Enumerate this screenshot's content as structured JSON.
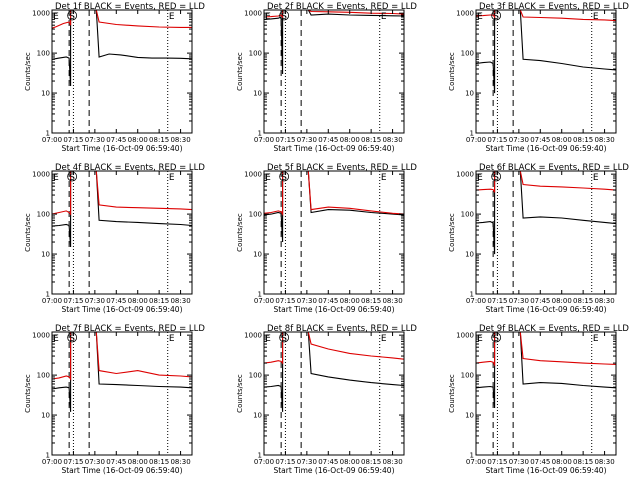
{
  "figure": {
    "x_ticks": [
      "07:00",
      "07:15",
      "07:30",
      "07:45",
      "08:00",
      "08:15",
      "08:30"
    ],
    "y_ticks": [
      "1",
      "10",
      "100",
      "1000"
    ],
    "xlabel": "Start Time (16-Oct-09 06:59:40)",
    "ylabel": "Counts/sec",
    "markers": [
      "E",
      "S",
      "E"
    ],
    "colors": {
      "events": "#000000",
      "lld": "#dd0000",
      "frame": "#000000"
    }
  },
  "chart_data": [
    {
      "type": "line",
      "title": "Det 1f BLACK = Events, RED = LLD",
      "xlim": [
        "07:00",
        "08:38"
      ],
      "ylog": true,
      "ylim": [
        1,
        1200
      ],
      "series": [
        {
          "name": "BLACK = Events",
          "color": "#000000",
          "x": [
            "07:00",
            "07:05",
            "07:10",
            "07:12",
            "07:13",
            "07:13",
            "07:20",
            "07:25",
            "07:31",
            "07:33",
            "07:40",
            "07:48",
            "08:00",
            "08:10",
            "08:20",
            "08:30",
            "08:38"
          ],
          "y": [
            70,
            75,
            80,
            75,
            15,
            1200,
            1200,
            1200,
            1200,
            80,
            95,
            90,
            78,
            75,
            75,
            74,
            72
          ]
        },
        {
          "name": "RED = LLD",
          "color": "#dd0000",
          "x": [
            "07:00",
            "07:03",
            "07:08",
            "07:12",
            "07:13",
            "07:13",
            "07:20",
            "07:25",
            "07:31",
            "07:33",
            "07:45",
            "08:00",
            "08:15",
            "08:30",
            "08:38"
          ],
          "y": [
            420,
            460,
            550,
            600,
            500,
            1200,
            1200,
            1200,
            1200,
            600,
            520,
            480,
            450,
            440,
            440
          ]
        }
      ],
      "dashed_lines": [
        "07:12",
        "07:26"
      ],
      "dotted_lines": [
        "07:15",
        "08:21"
      ]
    },
    {
      "type": "line",
      "title": "Det 2f BLACK = Events, RED = LLD",
      "xlim": [
        "07:00",
        "08:38"
      ],
      "ylog": true,
      "ylim": [
        1,
        1200
      ],
      "series": [
        {
          "name": "BLACK = Events",
          "color": "#000000",
          "x": [
            "07:00",
            "07:05",
            "07:10",
            "07:12",
            "07:13",
            "07:13",
            "07:20",
            "07:25",
            "07:31",
            "07:33",
            "07:45",
            "08:00",
            "08:15",
            "08:30",
            "08:38"
          ],
          "y": [
            700,
            720,
            750,
            800,
            30,
            1200,
            1200,
            1200,
            1200,
            900,
            950,
            900,
            880,
            860,
            850
          ]
        },
        {
          "name": "RED = LLD",
          "color": "#dd0000",
          "x": [
            "07:00",
            "07:05",
            "07:10",
            "07:12",
            "07:13",
            "07:13",
            "07:20",
            "07:25",
            "07:31",
            "07:33",
            "07:45",
            "08:00",
            "08:15",
            "08:30",
            "08:38"
          ],
          "y": [
            800,
            820,
            850,
            900,
            800,
            1200,
            1200,
            1200,
            1200,
            1100,
            1080,
            1050,
            1000,
            980,
            950
          ]
        }
      ],
      "dashed_lines": [
        "07:12",
        "07:26"
      ],
      "dotted_lines": [
        "07:15",
        "08:21"
      ]
    },
    {
      "type": "line",
      "title": "Det 3f BLACK = Events, RED = LLD",
      "xlim": [
        "07:00",
        "08:38"
      ],
      "ylog": true,
      "ylim": [
        1,
        1200
      ],
      "series": [
        {
          "name": "BLACK = Events",
          "color": "#000000",
          "x": [
            "07:00",
            "07:05",
            "07:10",
            "07:12",
            "07:13",
            "07:13",
            "07:20",
            "07:25",
            "07:31",
            "07:33",
            "07:45",
            "08:00",
            "08:15",
            "08:30",
            "08:38"
          ],
          "y": [
            55,
            58,
            60,
            55,
            10,
            1200,
            1200,
            1200,
            1200,
            70,
            65,
            55,
            45,
            40,
            38
          ]
        },
        {
          "name": "RED = LLD",
          "color": "#dd0000",
          "x": [
            "07:00",
            "07:05",
            "07:10",
            "07:12",
            "07:13",
            "07:13",
            "07:20",
            "07:25",
            "07:31",
            "07:33",
            "07:45",
            "08:00",
            "08:15",
            "08:30",
            "08:38"
          ],
          "y": [
            850,
            870,
            900,
            900,
            800,
            1200,
            1200,
            1200,
            1200,
            800,
            780,
            750,
            700,
            680,
            650
          ]
        }
      ],
      "dashed_lines": [
        "07:12",
        "07:26"
      ],
      "dotted_lines": [
        "07:15",
        "08:21"
      ]
    },
    {
      "type": "line",
      "title": "Det 4f BLACK = Events, RED = LLD",
      "xlim": [
        "07:00",
        "08:38"
      ],
      "ylog": true,
      "ylim": [
        1,
        1200
      ],
      "series": [
        {
          "name": "BLACK = Events",
          "color": "#000000",
          "x": [
            "07:00",
            "07:05",
            "07:10",
            "07:12",
            "07:13",
            "07:13",
            "07:20",
            "07:25",
            "07:31",
            "07:33",
            "07:45",
            "08:00",
            "08:15",
            "08:30",
            "08:38"
          ],
          "y": [
            50,
            52,
            55,
            52,
            15,
            1200,
            1200,
            1200,
            1200,
            70,
            65,
            62,
            58,
            55,
            52
          ]
        },
        {
          "name": "RED = LLD",
          "color": "#dd0000",
          "x": [
            "07:00",
            "07:05",
            "07:10",
            "07:12",
            "07:13",
            "07:13",
            "07:20",
            "07:25",
            "07:31",
            "07:33",
            "07:45",
            "08:00",
            "08:15",
            "08:30",
            "08:38"
          ],
          "y": [
            100,
            110,
            120,
            110,
            100,
            1200,
            1200,
            1200,
            1200,
            170,
            150,
            145,
            140,
            135,
            130
          ]
        }
      ],
      "dashed_lines": [
        "07:12",
        "07:26"
      ],
      "dotted_lines": [
        "07:15",
        "08:21"
      ]
    },
    {
      "type": "line",
      "title": "Det 5f BLACK = Events, RED = LLD",
      "xlim": [
        "07:00",
        "08:38"
      ],
      "ylog": true,
      "ylim": [
        1,
        1200
      ],
      "series": [
        {
          "name": "BLACK = Events",
          "color": "#000000",
          "x": [
            "07:00",
            "07:05",
            "07:10",
            "07:12",
            "07:13",
            "07:13",
            "07:20",
            "07:25",
            "07:31",
            "07:33",
            "07:45",
            "08:00",
            "08:15",
            "08:30",
            "08:38"
          ],
          "y": [
            95,
            100,
            110,
            105,
            20,
            1200,
            1200,
            1200,
            1200,
            110,
            130,
            125,
            110,
            100,
            95
          ]
        },
        {
          "name": "RED = LLD",
          "color": "#dd0000",
          "x": [
            "07:00",
            "07:05",
            "07:10",
            "07:12",
            "07:13",
            "07:13",
            "07:20",
            "07:25",
            "07:31",
            "07:33",
            "07:45",
            "08:00",
            "08:15",
            "08:30",
            "08:38"
          ],
          "y": [
            105,
            110,
            120,
            115,
            100,
            1200,
            1200,
            1200,
            1200,
            130,
            150,
            140,
            120,
            105,
            100
          ]
        }
      ],
      "dashed_lines": [
        "07:12",
        "07:26"
      ],
      "dotted_lines": [
        "07:15",
        "08:21"
      ]
    },
    {
      "type": "line",
      "title": "Det 6f BLACK = Events, RED = LLD",
      "xlim": [
        "07:00",
        "08:38"
      ],
      "ylog": true,
      "ylim": [
        1,
        1200
      ],
      "series": [
        {
          "name": "BLACK = Events",
          "color": "#000000",
          "x": [
            "07:00",
            "07:05",
            "07:10",
            "07:12",
            "07:13",
            "07:13",
            "07:20",
            "07:25",
            "07:31",
            "07:33",
            "07:45",
            "08:00",
            "08:15",
            "08:30",
            "08:38"
          ],
          "y": [
            60,
            62,
            65,
            60,
            10,
            1200,
            1200,
            1200,
            1200,
            80,
            85,
            80,
            70,
            62,
            58
          ]
        },
        {
          "name": "RED = LLD",
          "color": "#dd0000",
          "x": [
            "07:00",
            "07:05",
            "07:10",
            "07:12",
            "07:13",
            "07:13",
            "07:20",
            "07:25",
            "07:31",
            "07:33",
            "07:45",
            "08:00",
            "08:15",
            "08:30",
            "08:38"
          ],
          "y": [
            400,
            410,
            420,
            410,
            350,
            1200,
            1200,
            1200,
            1200,
            550,
            500,
            480,
            450,
            420,
            400
          ]
        }
      ],
      "dashed_lines": [
        "07:12",
        "07:26"
      ],
      "dotted_lines": [
        "07:15",
        "08:21"
      ]
    },
    {
      "type": "line",
      "title": "Det 7f BLACK = Events, RED = LLD",
      "xlim": [
        "07:00",
        "08:38"
      ],
      "ylog": true,
      "ylim": [
        1,
        1200
      ],
      "series": [
        {
          "name": "BLACK = Events",
          "color": "#000000",
          "x": [
            "07:00",
            "07:05",
            "07:10",
            "07:12",
            "07:13",
            "07:13",
            "07:20",
            "07:25",
            "07:31",
            "07:33",
            "07:45",
            "08:00",
            "08:15",
            "08:30",
            "08:38"
          ],
          "y": [
            45,
            48,
            50,
            48,
            12,
            1200,
            1200,
            1200,
            1200,
            60,
            58,
            55,
            52,
            50,
            48
          ]
        },
        {
          "name": "RED = LLD",
          "color": "#dd0000",
          "x": [
            "07:00",
            "07:05",
            "07:10",
            "07:12",
            "07:13",
            "07:13",
            "07:20",
            "07:25",
            "07:31",
            "07:33",
            "07:45",
            "08:00",
            "08:15",
            "08:30",
            "08:38"
          ],
          "y": [
            80,
            85,
            95,
            90,
            80,
            1200,
            1200,
            1200,
            1200,
            130,
            110,
            130,
            100,
            95,
            90
          ]
        }
      ],
      "dashed_lines": [
        "07:12",
        "07:26"
      ],
      "dotted_lines": [
        "07:15",
        "08:21"
      ]
    },
    {
      "type": "line",
      "title": "Det 8f BLACK = Events, RED = LLD",
      "xlim": [
        "07:00",
        "08:38"
      ],
      "ylog": true,
      "ylim": [
        1,
        1200
      ],
      "series": [
        {
          "name": "BLACK = Events",
          "color": "#000000",
          "x": [
            "07:00",
            "07:05",
            "07:10",
            "07:12",
            "07:13",
            "07:13",
            "07:20",
            "07:25",
            "07:31",
            "07:33",
            "07:45",
            "08:00",
            "08:15",
            "08:30",
            "08:38"
          ],
          "y": [
            50,
            52,
            55,
            52,
            12,
            1200,
            1200,
            1200,
            1200,
            110,
            90,
            75,
            65,
            58,
            55
          ]
        },
        {
          "name": "RED = LLD",
          "color": "#dd0000",
          "x": [
            "07:00",
            "07:05",
            "07:10",
            "07:12",
            "07:13",
            "07:13",
            "07:20",
            "07:25",
            "07:31",
            "07:33",
            "07:45",
            "08:00",
            "08:15",
            "08:30",
            "08:38"
          ],
          "y": [
            200,
            210,
            230,
            220,
            200,
            1200,
            1200,
            1200,
            1200,
            600,
            450,
            350,
            300,
            270,
            250
          ]
        }
      ],
      "dashed_lines": [
        "07:12",
        "07:26"
      ],
      "dotted_lines": [
        "07:15",
        "08:21"
      ]
    },
    {
      "type": "line",
      "title": "Det 9f BLACK = Events, RED = LLD",
      "xlim": [
        "07:00",
        "08:38"
      ],
      "ylog": true,
      "ylim": [
        1,
        1200
      ],
      "series": [
        {
          "name": "BLACK = Events",
          "color": "#000000",
          "x": [
            "07:00",
            "07:05",
            "07:10",
            "07:12",
            "07:13",
            "07:13",
            "07:20",
            "07:25",
            "07:31",
            "07:33",
            "07:45",
            "08:00",
            "08:15",
            "08:30",
            "08:38"
          ],
          "y": [
            48,
            50,
            52,
            50,
            15,
            1200,
            1200,
            1200,
            1200,
            60,
            65,
            62,
            55,
            50,
            48
          ]
        },
        {
          "name": "RED = LLD",
          "color": "#dd0000",
          "x": [
            "07:00",
            "07:05",
            "07:10",
            "07:12",
            "07:13",
            "07:13",
            "07:20",
            "07:25",
            "07:31",
            "07:33",
            "07:45",
            "08:00",
            "08:15",
            "08:30",
            "08:38"
          ],
          "y": [
            200,
            210,
            220,
            210,
            180,
            1200,
            1200,
            1200,
            1200,
            260,
            230,
            215,
            200,
            190,
            185
          ]
        }
      ],
      "dashed_lines": [
        "07:12",
        "07:26"
      ],
      "dotted_lines": [
        "07:15",
        "08:21"
      ]
    }
  ]
}
